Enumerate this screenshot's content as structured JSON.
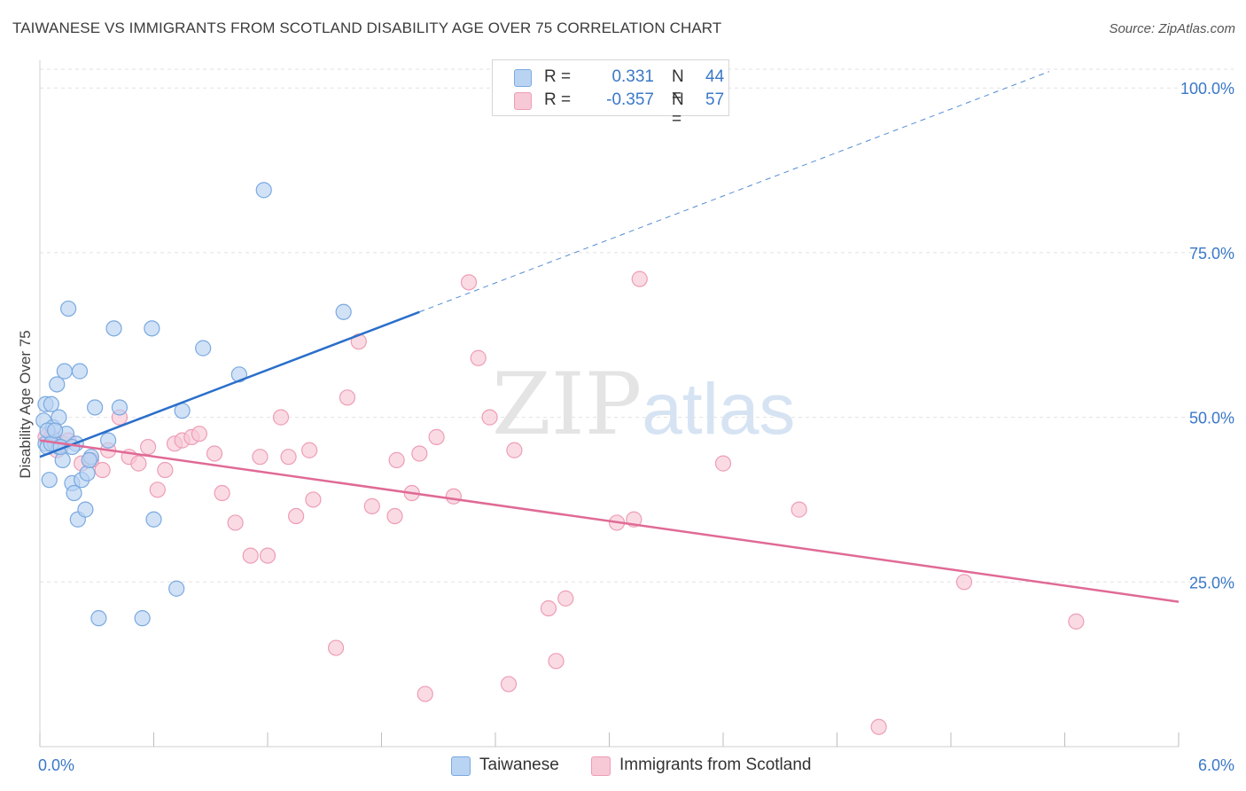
{
  "title": "TAIWANESE VS IMMIGRANTS FROM SCOTLAND DISABILITY AGE OVER 75 CORRELATION CHART",
  "source": "Source: ZipAtlas.com",
  "watermark": {
    "zip": "ZIP",
    "atlas": "atlas"
  },
  "legend": {
    "rows": [
      {
        "r_label": "R =",
        "r_value": "0.331",
        "n_label": "N =",
        "n_value": "44"
      },
      {
        "r_label": "R =",
        "r_value": "-0.357",
        "n_label": "N =",
        "n_value": "57"
      }
    ]
  },
  "colors": {
    "blue_fill": "#b9d3f2",
    "blue_stroke": "#7aa9e0",
    "blue_line": "#2a6fca",
    "pink_fill": "#f7c8d6",
    "pink_stroke": "#ee9db6",
    "pink_line": "#e06a95",
    "tick_label": "#3a78c9",
    "grid": "#e2e2e2"
  },
  "chart_data": {
    "type": "scatter",
    "title": "TAIWANESE VS IMMIGRANTS FROM SCOTLAND DISABILITY AGE OVER 75 CORRELATION CHART",
    "xlabel": "",
    "ylabel": "Disability Age Over 75",
    "xlim": [
      0,
      6
    ],
    "ylim": [
      0,
      102
    ],
    "x_tick_labels": [
      "0.0%",
      "6.0%"
    ],
    "y_ticks": [
      25,
      50,
      75,
      100
    ],
    "y_tick_labels": [
      "25.0%",
      "50.0%",
      "75.0%",
      "100.0%"
    ],
    "grid": true,
    "legend_position": "bottom",
    "series": [
      {
        "name": "Taiwanese",
        "color": "#b9d3f2",
        "points": [
          [
            0.02,
            49.5
          ],
          [
            0.03,
            52
          ],
          [
            0.03,
            46
          ],
          [
            0.04,
            45.5
          ],
          [
            0.05,
            40.5
          ],
          [
            0.06,
            52
          ],
          [
            0.07,
            48.5
          ],
          [
            0.08,
            46
          ],
          [
            0.09,
            55
          ],
          [
            0.1,
            45.5
          ],
          [
            0.1,
            50
          ],
          [
            0.12,
            43.5
          ],
          [
            0.13,
            57
          ],
          [
            0.14,
            47.5
          ],
          [
            0.15,
            66.5
          ],
          [
            0.17,
            40
          ],
          [
            0.18,
            38.5
          ],
          [
            0.19,
            46
          ],
          [
            0.2,
            34.5
          ],
          [
            0.21,
            57
          ],
          [
            0.22,
            40.5
          ],
          [
            0.24,
            36
          ],
          [
            0.25,
            41.5
          ],
          [
            0.27,
            44
          ],
          [
            0.29,
            51.5
          ],
          [
            0.31,
            19.5
          ],
          [
            0.36,
            46.5
          ],
          [
            0.39,
            63.5
          ],
          [
            0.42,
            51.5
          ],
          [
            0.54,
            19.5
          ],
          [
            0.59,
            63.5
          ],
          [
            0.6,
            34.5
          ],
          [
            0.72,
            24
          ],
          [
            0.75,
            51
          ],
          [
            0.86,
            60.5
          ],
          [
            1.05,
            56.5
          ],
          [
            1.18,
            84.5
          ],
          [
            1.6,
            66
          ],
          [
            0.04,
            48
          ],
          [
            0.06,
            46
          ],
          [
            0.08,
            48
          ],
          [
            0.11,
            45.5
          ],
          [
            0.17,
            45.5
          ],
          [
            0.26,
            43.5
          ]
        ],
        "trend": {
          "x0": 0.0,
          "y0": 44,
          "x1": 2.0,
          "y1": 66,
          "dash_to_x": 6.0
        }
      },
      {
        "name": "Immigrants from Scotland",
        "color": "#f7c8d6",
        "points": [
          [
            0.03,
            47
          ],
          [
            0.06,
            47
          ],
          [
            0.09,
            45
          ],
          [
            0.12,
            46
          ],
          [
            0.15,
            46.5
          ],
          [
            0.22,
            43
          ],
          [
            0.27,
            43.5
          ],
          [
            0.33,
            42
          ],
          [
            0.36,
            45
          ],
          [
            0.42,
            50
          ],
          [
            0.47,
            44
          ],
          [
            0.52,
            43
          ],
          [
            0.57,
            45.5
          ],
          [
            0.62,
            39
          ],
          [
            0.66,
            42
          ],
          [
            0.71,
            46
          ],
          [
            0.75,
            46.5
          ],
          [
            0.8,
            47
          ],
          [
            0.84,
            47.5
          ],
          [
            0.92,
            44.5
          ],
          [
            0.96,
            38.5
          ],
          [
            1.03,
            34
          ],
          [
            1.11,
            29
          ],
          [
            1.16,
            44
          ],
          [
            1.2,
            29
          ],
          [
            1.27,
            50
          ],
          [
            1.31,
            44
          ],
          [
            1.35,
            35
          ],
          [
            1.42,
            45
          ],
          [
            1.44,
            37.5
          ],
          [
            1.56,
            15
          ],
          [
            1.62,
            53
          ],
          [
            1.68,
            61.5
          ],
          [
            1.75,
            36.5
          ],
          [
            1.87,
            35
          ],
          [
            1.88,
            43.5
          ],
          [
            1.96,
            38.5
          ],
          [
            2.0,
            44.5
          ],
          [
            2.03,
            8
          ],
          [
            2.09,
            47
          ],
          [
            2.18,
            38
          ],
          [
            2.26,
            70.5
          ],
          [
            2.31,
            59
          ],
          [
            2.37,
            50
          ],
          [
            2.47,
            9.5
          ],
          [
            2.5,
            45
          ],
          [
            2.68,
            21
          ],
          [
            2.72,
            13
          ],
          [
            2.77,
            22.5
          ],
          [
            3.04,
            34
          ],
          [
            3.13,
            34.5
          ],
          [
            3.16,
            71
          ],
          [
            3.6,
            43
          ],
          [
            4.0,
            36
          ],
          [
            4.42,
            3
          ],
          [
            4.87,
            25
          ],
          [
            5.46,
            19
          ]
        ],
        "trend": {
          "x0": 0.0,
          "y0": 46.5,
          "x1": 6.0,
          "y1": 22
        }
      }
    ]
  }
}
